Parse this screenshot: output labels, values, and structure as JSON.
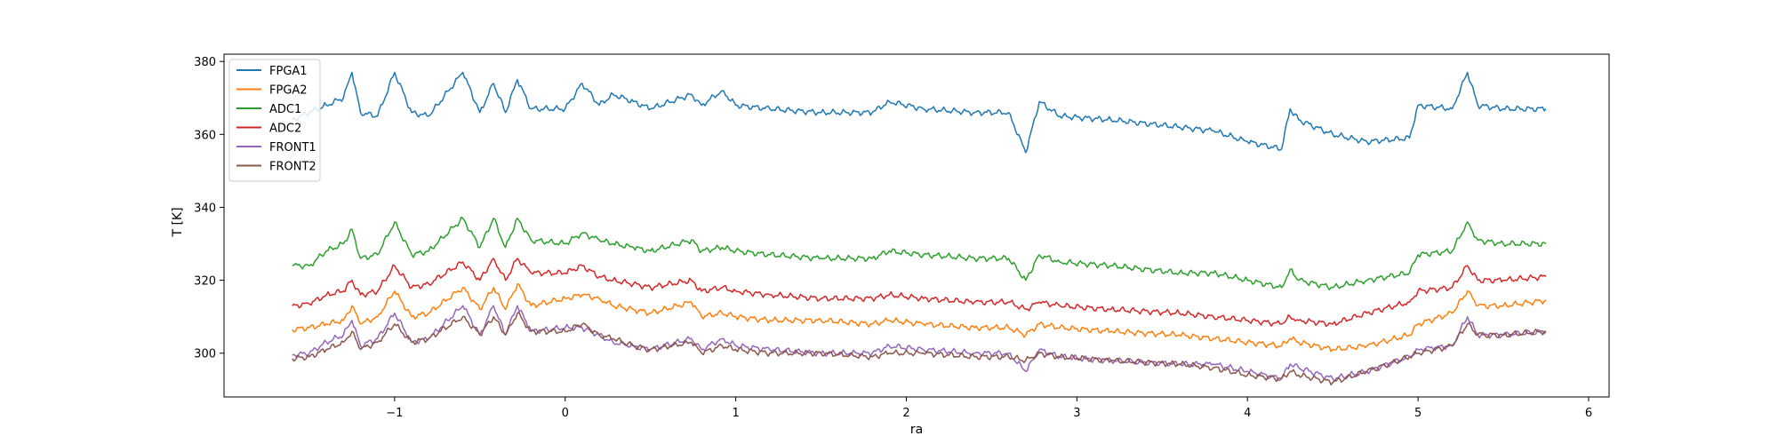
{
  "chart_data": {
    "type": "line",
    "xlabel": "ra",
    "ylabel": "T [K]",
    "xlim": [
      -2.0,
      6.12
    ],
    "ylim": [
      288,
      382
    ],
    "x_ticks": [
      -1,
      0,
      1,
      2,
      3,
      4,
      5,
      6
    ],
    "x_tick_labels": [
      "−1",
      "0",
      "1",
      "2",
      "3",
      "4",
      "5",
      "6"
    ],
    "y_ticks": [
      300,
      320,
      340,
      360,
      380
    ],
    "y_tick_labels": [
      "300",
      "320",
      "340",
      "360",
      "380"
    ],
    "grid": false,
    "legend_position": "upper-left",
    "x": [
      -1.6,
      -1.5,
      -1.4,
      -1.3,
      -1.25,
      -1.2,
      -1.1,
      -1.0,
      -0.9,
      -0.8,
      -0.6,
      -0.5,
      -0.42,
      -0.35,
      -0.28,
      -0.2,
      0.0,
      0.1,
      0.2,
      0.28,
      0.4,
      0.5,
      0.74,
      0.8,
      0.92,
      1.0,
      1.2,
      1.5,
      1.8,
      1.9,
      2.1,
      2.4,
      2.6,
      2.7,
      2.78,
      2.9,
      3.2,
      3.6,
      3.8,
      4.0,
      4.2,
      4.25,
      4.3,
      4.5,
      4.7,
      4.95,
      5.0,
      5.2,
      5.29,
      5.35,
      5.5,
      5.75
    ],
    "series": [
      {
        "name": "FPGA1",
        "color": "#1f77b4",
        "values": [
          364,
          366,
          368,
          370,
          377,
          366,
          365,
          377,
          366,
          365,
          377,
          366,
          374,
          366,
          375,
          367,
          367,
          374,
          368,
          371,
          369,
          367,
          371,
          368,
          372,
          368,
          367,
          366,
          366,
          369,
          367,
          366,
          366,
          355,
          369,
          365,
          364,
          362,
          361,
          358,
          356,
          367,
          364,
          360,
          358,
          359,
          368,
          367,
          377,
          368,
          367,
          367
        ]
      },
      {
        "name": "FPGA2",
        "color": "#ff7f0e",
        "values": [
          306.5,
          307,
          308,
          309,
          313,
          308,
          310,
          317,
          310,
          311,
          318,
          312,
          318,
          312,
          319,
          313,
          315,
          316,
          315,
          313,
          312,
          311,
          314,
          310,
          311,
          310,
          309,
          309,
          308,
          309,
          308,
          307,
          307,
          305,
          308,
          307,
          306,
          305,
          304,
          303,
          302,
          304,
          303,
          301,
          302,
          305,
          308,
          311,
          317,
          313,
          313,
          314.5
        ]
      },
      {
        "name": "ADC1",
        "color": "#2ca02c",
        "values": [
          324,
          324,
          328,
          330,
          334,
          326,
          327,
          336,
          327,
          328,
          337,
          329,
          337,
          329,
          337,
          331,
          330,
          333,
          331,
          330,
          329,
          328,
          331,
          328,
          329,
          328,
          327,
          326,
          326,
          328,
          327,
          326,
          326,
          320,
          327,
          325,
          324,
          322,
          322,
          320,
          318,
          323,
          320,
          318,
          320,
          322,
          327,
          328,
          336,
          331,
          330,
          330
        ]
      },
      {
        "name": "ADC2",
        "color": "#d62728",
        "values": [
          313,
          313.5,
          316,
          317,
          320,
          316,
          317,
          324,
          318,
          319,
          325,
          320,
          326,
          320,
          326,
          322,
          322,
          324,
          321,
          320,
          319,
          318,
          320,
          317,
          318,
          317,
          316,
          315,
          315,
          316,
          315,
          314,
          314,
          312,
          314,
          313,
          312,
          311,
          310,
          309,
          308,
          310,
          309,
          308,
          311,
          314,
          317,
          318,
          324,
          320,
          320,
          321
        ]
      },
      {
        "name": "FRONT1",
        "color": "#9467bd",
        "values": [
          299.5,
          300,
          303,
          305,
          309,
          302,
          304,
          311,
          303,
          304,
          313,
          305,
          313,
          305,
          313,
          306,
          307,
          307,
          305,
          303,
          302,
          301,
          304,
          301,
          304,
          302,
          301,
          300,
          300,
          302,
          301,
          300,
          300,
          295,
          301,
          299,
          298,
          297,
          297,
          295,
          293,
          297,
          296,
          293,
          295,
          299,
          301,
          302,
          310,
          305,
          305,
          306
        ]
      },
      {
        "name": "FRONT2",
        "color": "#8c564b",
        "values": [
          298.5,
          299,
          301,
          303,
          306,
          301,
          303,
          308,
          303,
          304,
          310,
          305,
          310,
          305,
          311,
          306,
          306,
          308,
          305,
          304,
          302,
          301,
          303,
          300,
          302,
          301,
          300,
          300,
          299,
          300,
          300,
          299,
          299,
          298,
          300,
          299,
          298,
          297,
          296,
          294,
          293,
          295,
          294,
          292,
          295,
          299,
          300,
          302,
          308,
          305,
          305,
          306
        ]
      }
    ]
  }
}
